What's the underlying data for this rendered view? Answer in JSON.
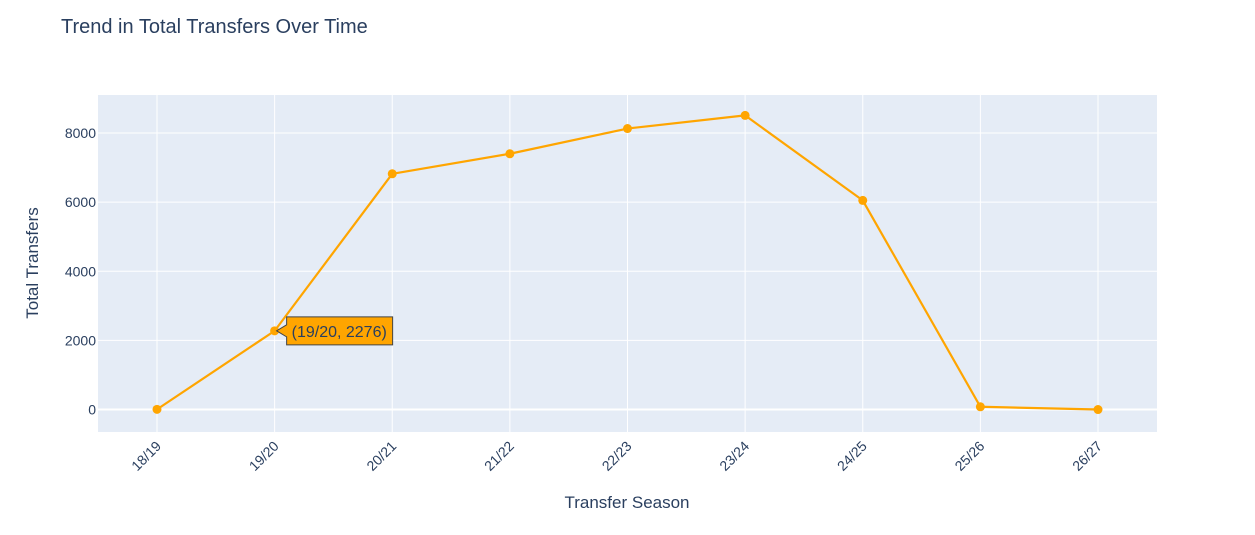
{
  "chart_data": {
    "type": "line",
    "title": "Trend in Total Transfers Over Time",
    "xlabel": "Transfer Season",
    "ylabel": "Total Transfers",
    "categories": [
      "18/19",
      "19/20",
      "20/21",
      "21/22",
      "22/23",
      "23/24",
      "24/25",
      "25/26",
      "26/27"
    ],
    "series": [
      {
        "values": [
          5,
          2276,
          6820,
          7400,
          8130,
          8510,
          6050,
          80,
          0
        ]
      }
    ],
    "ylim": [
      -650,
      9100
    ],
    "yticks": [
      0,
      2000,
      4000,
      6000,
      8000
    ],
    "ytick_labels": [
      "0",
      "2000",
      "4000",
      "6000",
      "8000"
    ],
    "grid": true,
    "legend": false,
    "hover": {
      "category": "19/20",
      "label": "(19/20, 2276)"
    },
    "colors": {
      "series": "#FFA500",
      "plot_bg": "#E5ECF6",
      "grid": "#ffffff",
      "text": "#2a3f5f",
      "tooltip_border": "#444444"
    }
  }
}
